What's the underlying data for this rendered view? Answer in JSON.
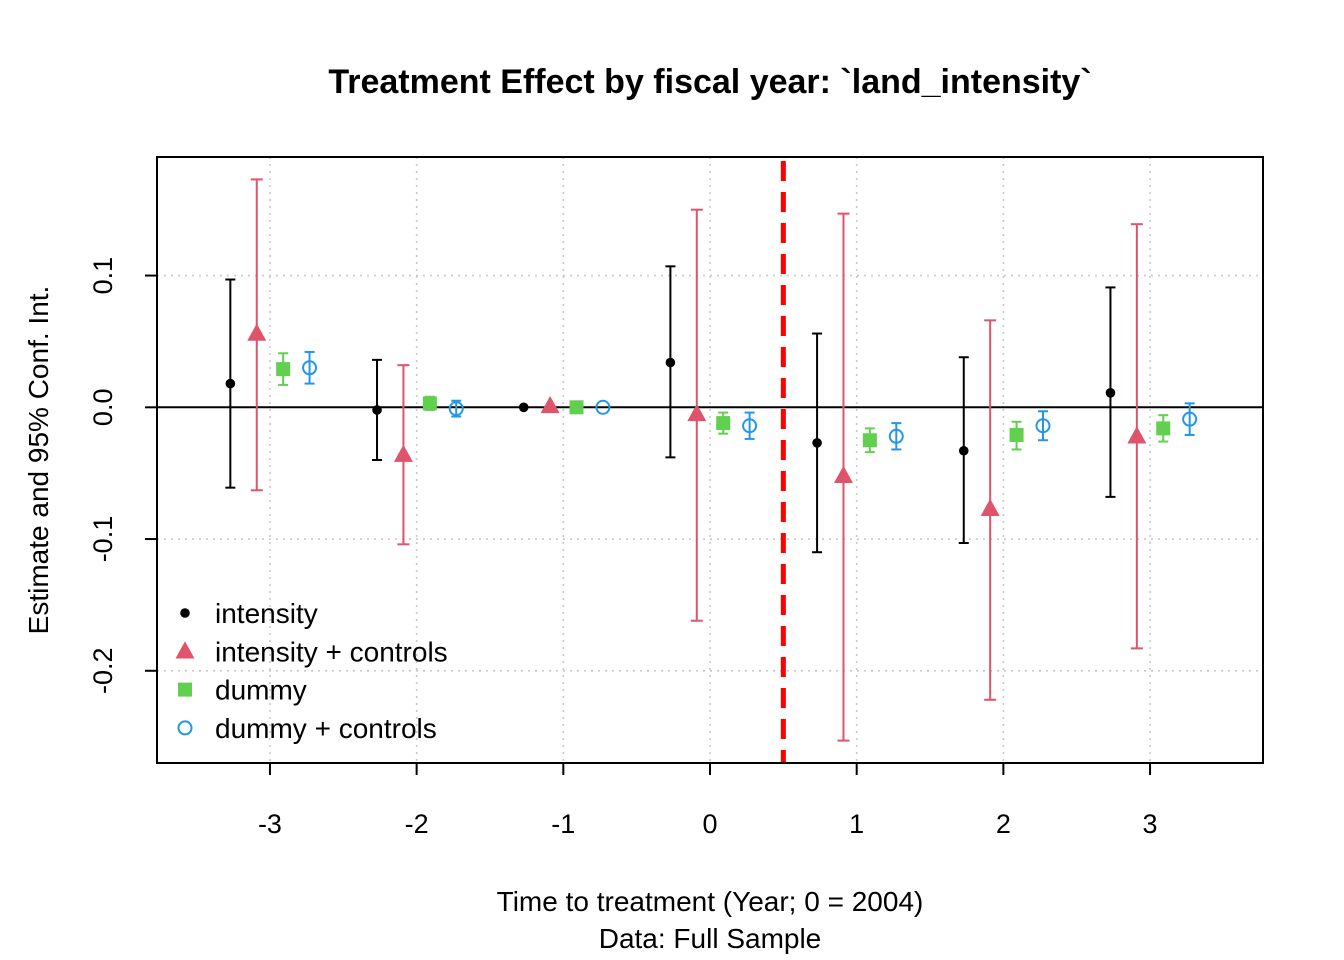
{
  "chart_data": {
    "type": "scatter",
    "title": "Treatment Effect by fiscal year: `land_intensity`",
    "xlabel": "Time to treatment (Year; 0 = 2004)",
    "xlabel_sub": "Data: Full Sample",
    "ylabel": "Estimate and 95% Conf. Int.",
    "x": [
      -3,
      -2,
      -1,
      0,
      1,
      2,
      3
    ],
    "x_ticks": [
      -3,
      -2,
      -1,
      0,
      1,
      2,
      3
    ],
    "x_tick_labels": [
      "-3",
      "-2",
      "-1",
      "0",
      "1",
      "2",
      "3"
    ],
    "y_ticks": [
      -0.2,
      -0.1,
      0.0,
      0.1
    ],
    "y_tick_labels": [
      "-0.2",
      "-0.1",
      "0.0",
      "0.1"
    ],
    "xlim": [
      -3.77,
      3.77
    ],
    "ylim": [
      -0.27,
      0.19
    ],
    "grid": true,
    "zero_line": 0,
    "treatment_line_x": 0.5,
    "treatment_line_color": "#ff0000",
    "legend_position": "bottom-left",
    "series": [
      {
        "name": "intensity",
        "marker": "dot",
        "color": "#000000",
        "dodge": -0.27,
        "estimate": [
          0.018,
          -0.002,
          0.0,
          0.034,
          -0.027,
          -0.033,
          0.011
        ],
        "ci_low": [
          -0.061,
          -0.04,
          0.0,
          -0.038,
          -0.11,
          -0.103,
          -0.068
        ],
        "ci_high": [
          0.097,
          0.036,
          0.0,
          0.107,
          0.056,
          0.038,
          0.091
        ]
      },
      {
        "name": "intensity + controls",
        "marker": "triangle",
        "color": "#df536b",
        "dodge": -0.09,
        "estimate": [
          0.056,
          -0.036,
          0.001,
          -0.005,
          -0.052,
          -0.077,
          -0.022
        ],
        "ci_low": [
          -0.063,
          -0.104,
          0.001,
          -0.162,
          -0.253,
          -0.222,
          -0.183
        ],
        "ci_high": [
          0.173,
          0.032,
          0.001,
          0.15,
          0.147,
          0.066,
          0.139
        ]
      },
      {
        "name": "dummy",
        "marker": "square",
        "color": "#61d04f",
        "dodge": 0.09,
        "estimate": [
          0.029,
          0.003,
          0.0,
          -0.012,
          -0.025,
          -0.021,
          -0.016
        ],
        "ci_low": [
          0.017,
          -0.002,
          0.0,
          -0.02,
          -0.034,
          -0.032,
          -0.026
        ],
        "ci_high": [
          0.041,
          0.008,
          0.0,
          -0.004,
          -0.016,
          -0.011,
          -0.006
        ]
      },
      {
        "name": "dummy + controls",
        "marker": "circle-open",
        "color": "#2297e6",
        "dodge": 0.27,
        "estimate": [
          0.03,
          -0.001,
          0.0,
          -0.014,
          -0.022,
          -0.014,
          -0.009
        ],
        "ci_low": [
          0.018,
          -0.007,
          0.0,
          -0.024,
          -0.032,
          -0.025,
          -0.021
        ],
        "ci_high": [
          0.042,
          0.005,
          0.0,
          -0.004,
          -0.012,
          -0.003,
          0.003
        ]
      }
    ]
  }
}
